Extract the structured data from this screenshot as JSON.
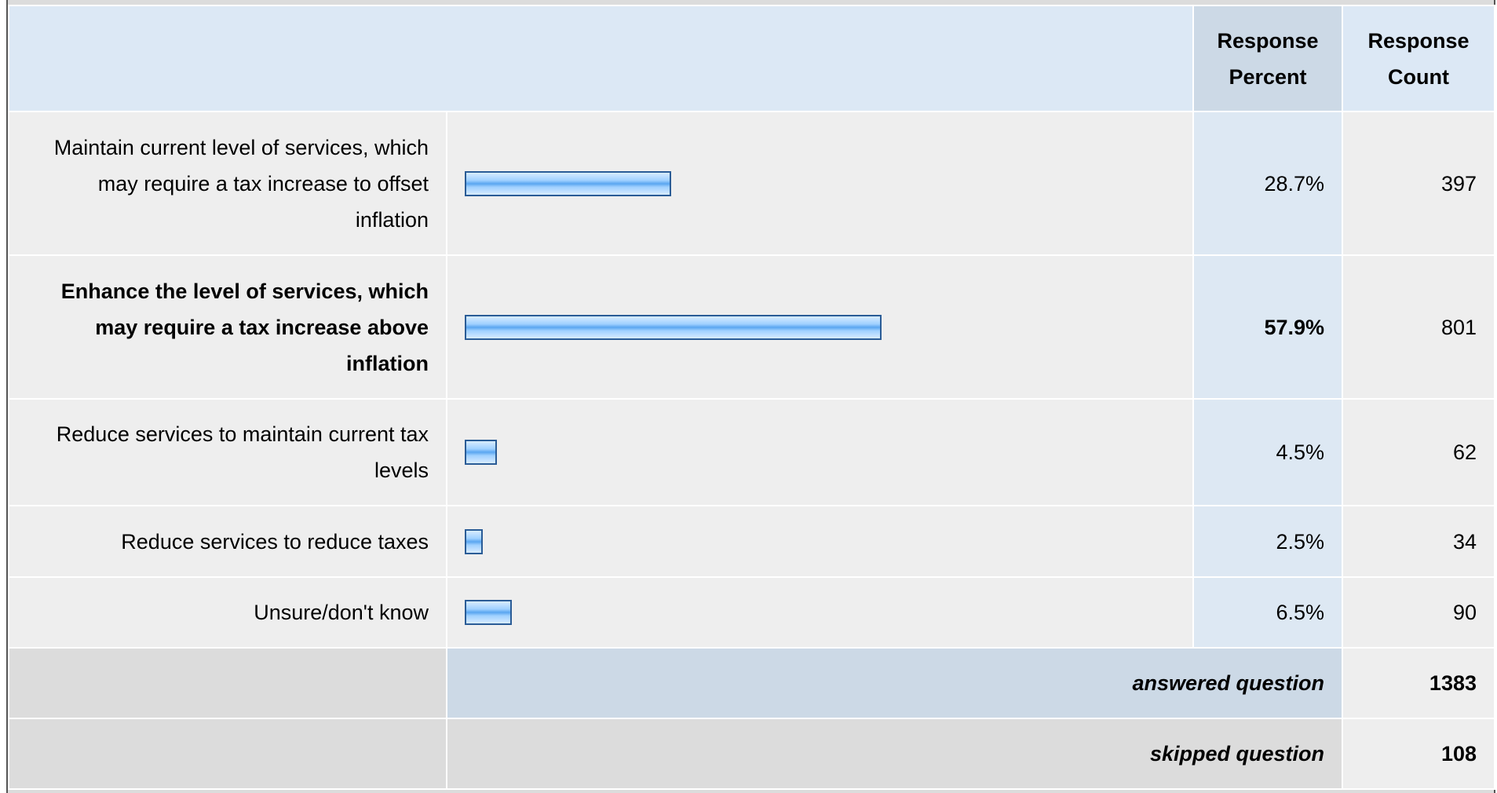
{
  "table": {
    "header": {
      "percent": "Response Percent",
      "count": "Response Count"
    },
    "rows": [
      {
        "label": "Maintain current level of services, which may require a tax increase to offset inflation",
        "percent": {
          "value": 28.7,
          "label": "28.7%"
        },
        "count": 397
      },
      {
        "label": "Enhance the level of services, which may require a tax increase above inflation",
        "percent": {
          "value": 57.9,
          "label": "57.9%"
        },
        "count": 801,
        "bold": true
      },
      {
        "label": "Reduce services to maintain current tax levels",
        "percent": {
          "value": 4.5,
          "label": "4.5%"
        },
        "count": 62
      },
      {
        "label": "Reduce services to reduce taxes",
        "percent": {
          "value": 2.5,
          "label": "2.5%"
        },
        "count": 34
      },
      {
        "label": "Unsure/don't know",
        "percent": {
          "value": 6.5,
          "label": "6.5%"
        },
        "count": 90
      }
    ],
    "footer": [
      {
        "label": "answered question",
        "value": 1383
      },
      {
        "label": "skipped question",
        "value": 108
      }
    ]
  }
}
